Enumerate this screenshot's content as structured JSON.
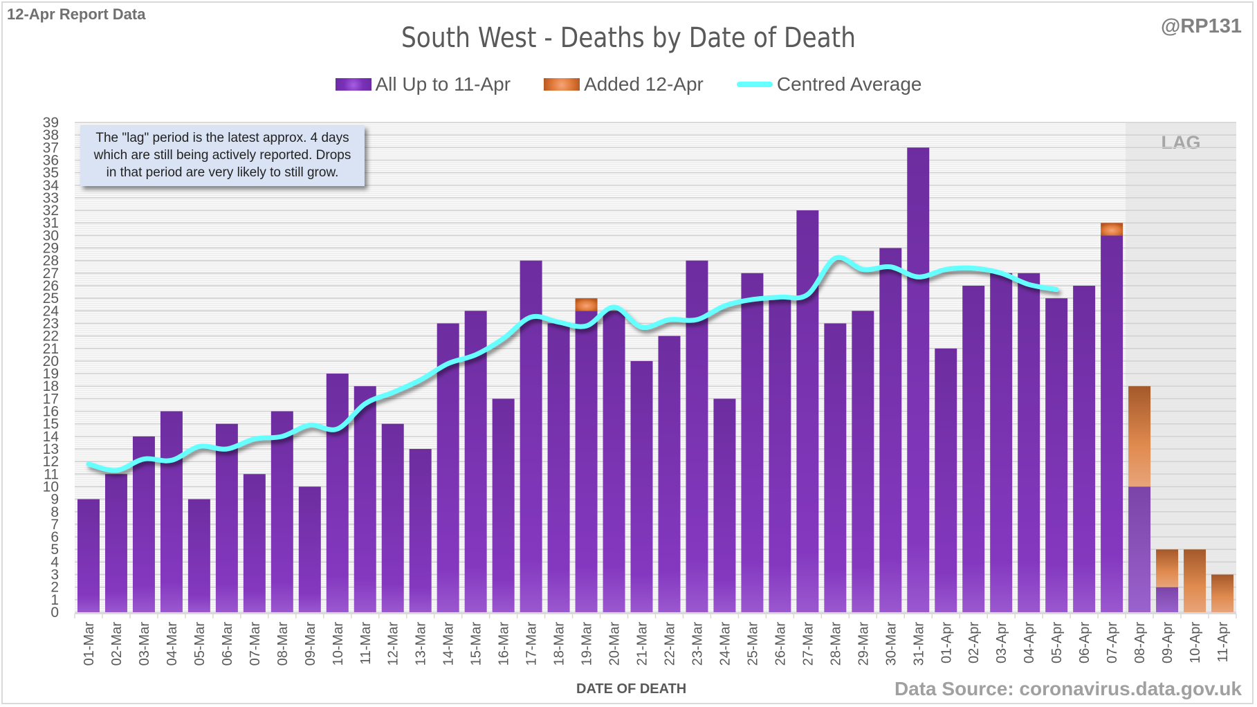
{
  "header": {
    "report_label": "12-Apr Report Data",
    "handle": "@RP131"
  },
  "annotation": {
    "lines": [
      "The \"lag\" period is the latest approx. 4 days",
      "which are still being actively reported.  Drops",
      "in that period are very likely to still grow."
    ]
  },
  "footer": {
    "source": "Data Source: coronavirus.data.gov.uk"
  },
  "colors": {
    "base_bar": "#7030a0",
    "added_bar": "#e07a3a",
    "average_line": "#66ffff",
    "lag_shade": "#e6e6e6"
  },
  "chart_data": {
    "type": "bar",
    "stacked": true,
    "title": "South West - Deaths by Date of Death",
    "xlabel": "DATE OF DEATH",
    "ylabel": "",
    "ylim": [
      0,
      39
    ],
    "ytick_step": 1,
    "grid": true,
    "legend_position": "top-center",
    "lag_label": "LAG",
    "lag_categories": [
      "08-Apr",
      "09-Apr",
      "10-Apr",
      "11-Apr"
    ],
    "categories": [
      "01-Mar",
      "02-Mar",
      "03-Mar",
      "04-Mar",
      "05-Mar",
      "06-Mar",
      "07-Mar",
      "08-Mar",
      "09-Mar",
      "10-Mar",
      "11-Mar",
      "12-Mar",
      "13-Mar",
      "14-Mar",
      "15-Mar",
      "16-Mar",
      "17-Mar",
      "18-Mar",
      "19-Mar",
      "20-Mar",
      "21-Mar",
      "22-Mar",
      "23-Mar",
      "24-Mar",
      "25-Mar",
      "26-Mar",
      "27-Mar",
      "28-Mar",
      "29-Mar",
      "30-Mar",
      "31-Mar",
      "01-Apr",
      "02-Apr",
      "03-Apr",
      "04-Apr",
      "05-Apr",
      "06-Apr",
      "07-Apr",
      "08-Apr",
      "09-Apr",
      "10-Apr",
      "11-Apr"
    ],
    "series": [
      {
        "name": "All Up to 11-Apr",
        "kind": "bar",
        "values": [
          9,
          11,
          14,
          16,
          9,
          15,
          11,
          16,
          10,
          19,
          18,
          15,
          13,
          23,
          24,
          17,
          28,
          23,
          24,
          24,
          20,
          22,
          28,
          17,
          27,
          25,
          32,
          23,
          24,
          29,
          37,
          21,
          26,
          27,
          27,
          25,
          26,
          30,
          10,
          2,
          0,
          0
        ]
      },
      {
        "name": "Added 12-Apr",
        "kind": "bar",
        "values": [
          0,
          0,
          0,
          0,
          0,
          0,
          0,
          0,
          0,
          0,
          0,
          0,
          0,
          0,
          0,
          0,
          0,
          0,
          1,
          0,
          0,
          0,
          0,
          0,
          0,
          0,
          0,
          0,
          0,
          0,
          0,
          0,
          0,
          0,
          0,
          0,
          0,
          1,
          8,
          3,
          5,
          3
        ]
      },
      {
        "name": "Centred Average",
        "kind": "line",
        "values": [
          11.8,
          11.3,
          12.2,
          12.1,
          13.2,
          13.0,
          13.8,
          14.0,
          14.9,
          14.6,
          16.6,
          17.5,
          18.5,
          19.8,
          20.5,
          21.8,
          23.5,
          23.1,
          22.8,
          24.3,
          22.7,
          23.3,
          23.3,
          24.4,
          24.9,
          25.1,
          25.3,
          28.2,
          27.3,
          27.5,
          26.7,
          27.3,
          27.4,
          27.0,
          26.1,
          25.7,
          null,
          null,
          null,
          null,
          null,
          null
        ]
      }
    ]
  }
}
